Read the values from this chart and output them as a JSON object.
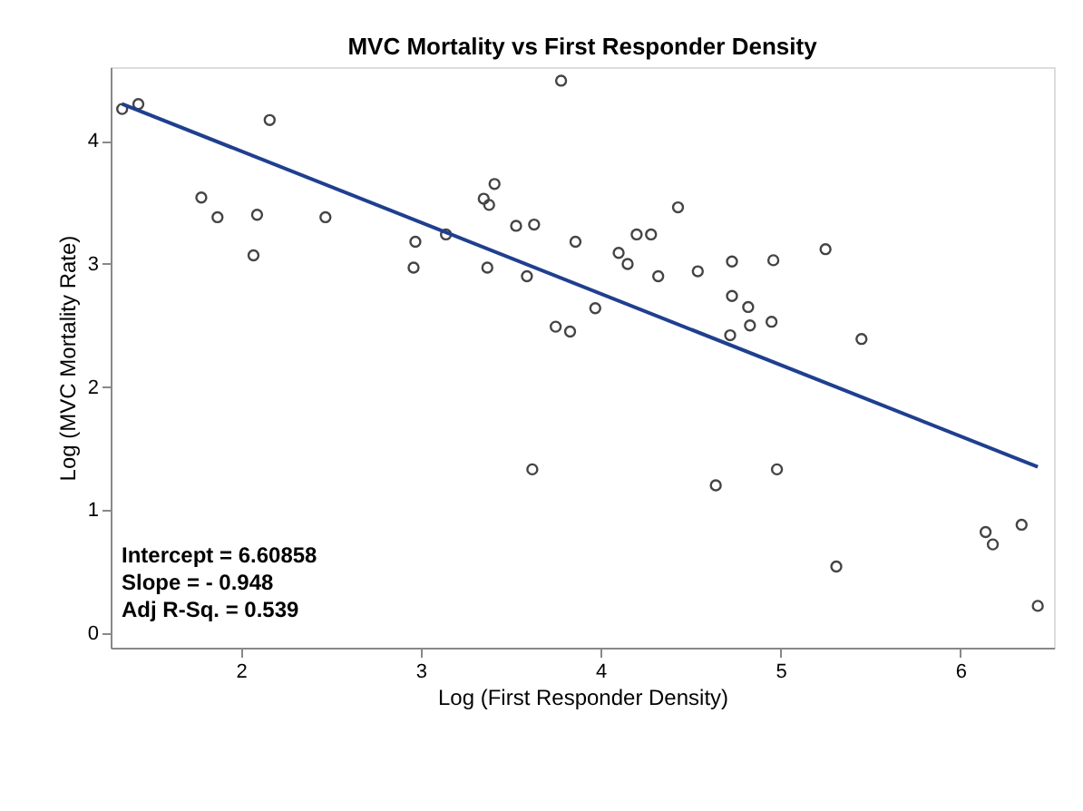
{
  "chart_data": {
    "type": "scatter",
    "title": "MVC Mortality vs First Responder Density",
    "xlabel": "Log (First Responder Density)",
    "ylabel": "Log (MVC Mortality Rate)",
    "xlim": [
      1.276,
      6.52
    ],
    "ylim": [
      -0.12,
      4.6
    ],
    "xticks": [
      2,
      3,
      4,
      5,
      6
    ],
    "yticks": [
      0,
      1,
      2,
      3,
      4
    ],
    "grid": false,
    "marker": "circle",
    "annotations": [
      "Intercept = 6.60858",
      "Slope = - 0.948",
      "Adj R-Sq. = 0.539"
    ],
    "series": [
      {
        "color": "#444444",
        "x": [
          1.34,
          1.43,
          2.16,
          1.78,
          1.87,
          2.09,
          2.07,
          2.47,
          3.14,
          2.97,
          2.96,
          3.35,
          3.38,
          3.41,
          3.37,
          3.53,
          3.63,
          3.59,
          3.86,
          3.75,
          3.83,
          3.78,
          3.97,
          4.43,
          4.2,
          4.28,
          4.1,
          4.15,
          4.32,
          4.54,
          4.73,
          4.96,
          5.25,
          4.73,
          4.82,
          4.83,
          4.95,
          4.72,
          5.45,
          3.62,
          4.64,
          4.98,
          5.31,
          6.14,
          6.18,
          6.34,
          6.43
        ],
        "values": [
          4.26,
          4.3,
          4.17,
          3.54,
          3.38,
          3.4,
          3.07,
          3.38,
          3.24,
          3.18,
          2.97,
          3.53,
          3.48,
          3.65,
          2.97,
          3.31,
          3.32,
          2.9,
          3.18,
          2.49,
          2.45,
          4.49,
          2.64,
          3.46,
          3.24,
          3.24,
          3.09,
          3.0,
          2.9,
          2.94,
          3.02,
          3.03,
          3.12,
          2.74,
          2.65,
          2.5,
          2.53,
          2.42,
          2.39,
          1.33,
          1.2,
          1.33,
          0.54,
          0.82,
          0.72,
          0.88,
          0.22
        ]
      },
      {
        "type": "line",
        "color": "#1f3f8f",
        "x": [
          1.34,
          6.43
        ],
        "values": [
          4.3,
          1.35
        ],
        "line_style": "solid",
        "marker": "none"
      }
    ]
  }
}
